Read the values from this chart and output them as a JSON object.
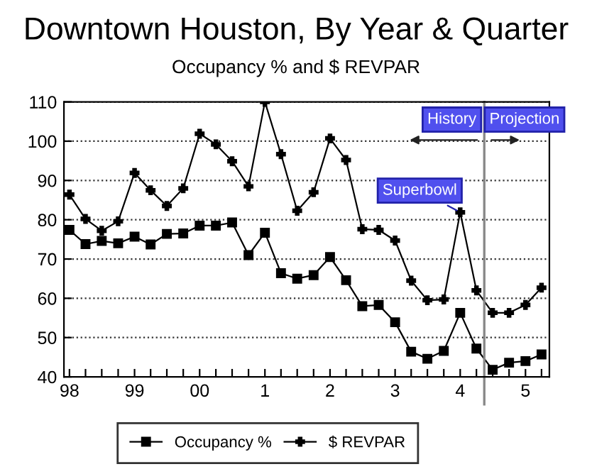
{
  "chart_data": {
    "type": "line",
    "title": "Downtown Houston, By Year & Quarter",
    "subtitle": "Occupancy % and $ REVPAR",
    "x": [
      "1998-01",
      "1998-04",
      "1998-07",
      "1998-10",
      "1999-01",
      "1999-04",
      "1999-07",
      "1999-10",
      "2000-01",
      "2000-04",
      "2000-07",
      "2000-10",
      "2001-01",
      "2001-04",
      "2001-07",
      "2001-10",
      "2002-01",
      "2002-04",
      "2002-07",
      "2002-10",
      "2003-01",
      "2003-04",
      "2003-07",
      "2003-10",
      "2004-01",
      "2004-04",
      "2004-07",
      "2004-10",
      "2005-01",
      "2005-04"
    ],
    "series": [
      {
        "name": "Occupancy %",
        "color": "#000000",
        "marker": "square",
        "values": [
          77.4,
          73.8,
          74.6,
          74.0,
          75.7,
          73.7,
          76.4,
          76.5,
          78.5,
          78.5,
          79.3,
          71.0,
          76.7,
          66.4,
          65.0,
          65.9,
          70.5,
          64.6,
          58.0,
          58.3,
          53.9,
          46.4,
          44.6,
          46.6,
          56.3,
          47.2,
          41.8,
          43.6,
          44.0,
          45.7
        ]
      },
      {
        "name": "$ REVPAR",
        "color": "#000000",
        "marker": "cross",
        "values": [
          86.4,
          80.2,
          77.2,
          79.6,
          91.9,
          87.5,
          83.5,
          88.0,
          101.9,
          99.2,
          94.9,
          88.5,
          110,
          96.7,
          82.3,
          87.0,
          100.7,
          95.2,
          77.6,
          77.4,
          74.7,
          64.5,
          59.5,
          59.7,
          81.9,
          62.0,
          56.3,
          56.3,
          58.3,
          62.7
        ]
      }
    ],
    "xlim": [
      "1997-12-01",
      "2005-05-15"
    ],
    "xticks": [
      {
        "value": "1998-01",
        "label": "98"
      },
      {
        "value": "1998-04",
        "label": null
      },
      {
        "value": "1998-07",
        "label": null
      },
      {
        "value": "1998-10",
        "label": null
      },
      {
        "value": "1999-01",
        "label": "99"
      },
      {
        "value": "1999-04",
        "label": null
      },
      {
        "value": "1999-07",
        "label": null
      },
      {
        "value": "1999-10",
        "label": null
      },
      {
        "value": "2000-01",
        "label": "00"
      },
      {
        "value": "2000-04",
        "label": null
      },
      {
        "value": "2000-07",
        "label": null
      },
      {
        "value": "2000-10",
        "label": null
      },
      {
        "value": "2001-01",
        "label": "1"
      },
      {
        "value": "2001-04",
        "label": null
      },
      {
        "value": "2001-07",
        "label": null
      },
      {
        "value": "2001-10",
        "label": null
      },
      {
        "value": "2002-01",
        "label": "2"
      },
      {
        "value": "2002-04",
        "label": null
      },
      {
        "value": "2002-07",
        "label": null
      },
      {
        "value": "2002-10",
        "label": null
      },
      {
        "value": "2003-01",
        "label": "3"
      },
      {
        "value": "2003-04",
        "label": null
      },
      {
        "value": "2003-07",
        "label": null
      },
      {
        "value": "2003-10",
        "label": null
      },
      {
        "value": "2004-01",
        "label": "4"
      },
      {
        "value": "2004-04",
        "label": null
      },
      {
        "value": "2004-07",
        "label": null
      },
      {
        "value": "2004-10",
        "label": null
      },
      {
        "value": "2005-01",
        "label": "5"
      },
      {
        "value": "2005-04",
        "label": null
      }
    ],
    "ylim": [
      40,
      110
    ],
    "yticks": [
      40,
      50,
      60,
      70,
      80,
      90,
      100,
      110
    ],
    "grid": "y",
    "legend": "bottom",
    "line_style": "solid",
    "ref_lines": [
      {
        "axis": "x",
        "value": "2004-05-15",
        "color": "#888888",
        "line_style": "solid"
      }
    ],
    "annotations": [
      "History",
      "Projection",
      {
        "text": "Superbowl",
        "x": "2004-01",
        "y": 81.9
      }
    ]
  }
}
